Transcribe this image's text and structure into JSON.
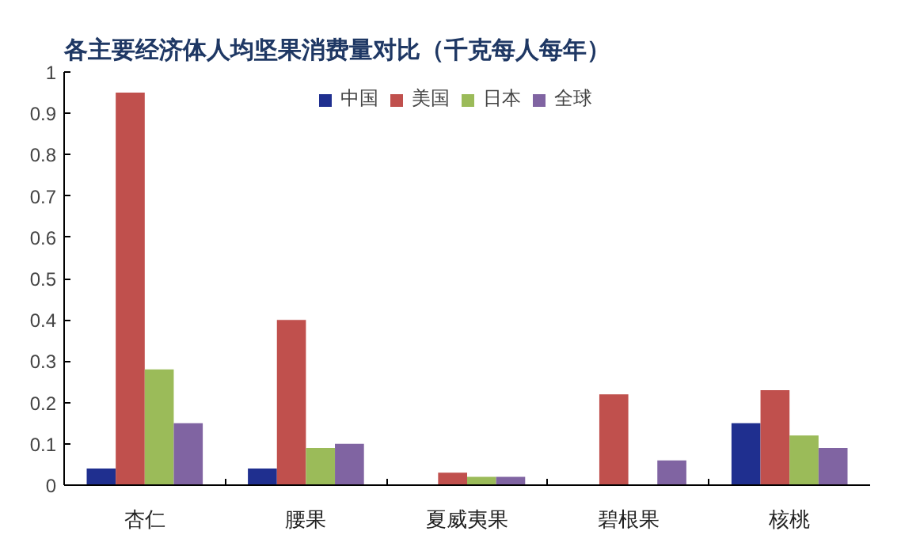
{
  "chart_data": {
    "type": "bar",
    "title": "各主要经济体人均坚果消费量对比（千克每人每年）",
    "categories": [
      "杏仁",
      "腰果",
      "夏威夷果",
      "碧根果",
      "核桃"
    ],
    "series": [
      {
        "name": "中国",
        "color": "#1f2f8f",
        "values": [
          0.04,
          0.04,
          null,
          null,
          0.15
        ]
      },
      {
        "name": "美国",
        "color": "#c0504d",
        "values": [
          0.95,
          0.4,
          0.03,
          0.22,
          0.23
        ]
      },
      {
        "name": "日本",
        "color": "#9bbb59",
        "values": [
          0.28,
          0.09,
          0.02,
          null,
          0.12
        ]
      },
      {
        "name": "全球",
        "color": "#8064a2",
        "values": [
          0.15,
          0.1,
          0.02,
          0.06,
          0.09
        ]
      }
    ],
    "ylim": [
      0,
      1
    ],
    "yticks": [
      0,
      0.1,
      0.2,
      0.3,
      0.4,
      0.5,
      0.6,
      0.7,
      0.8,
      0.9,
      1
    ],
    "legend": "top",
    "grid": false
  }
}
